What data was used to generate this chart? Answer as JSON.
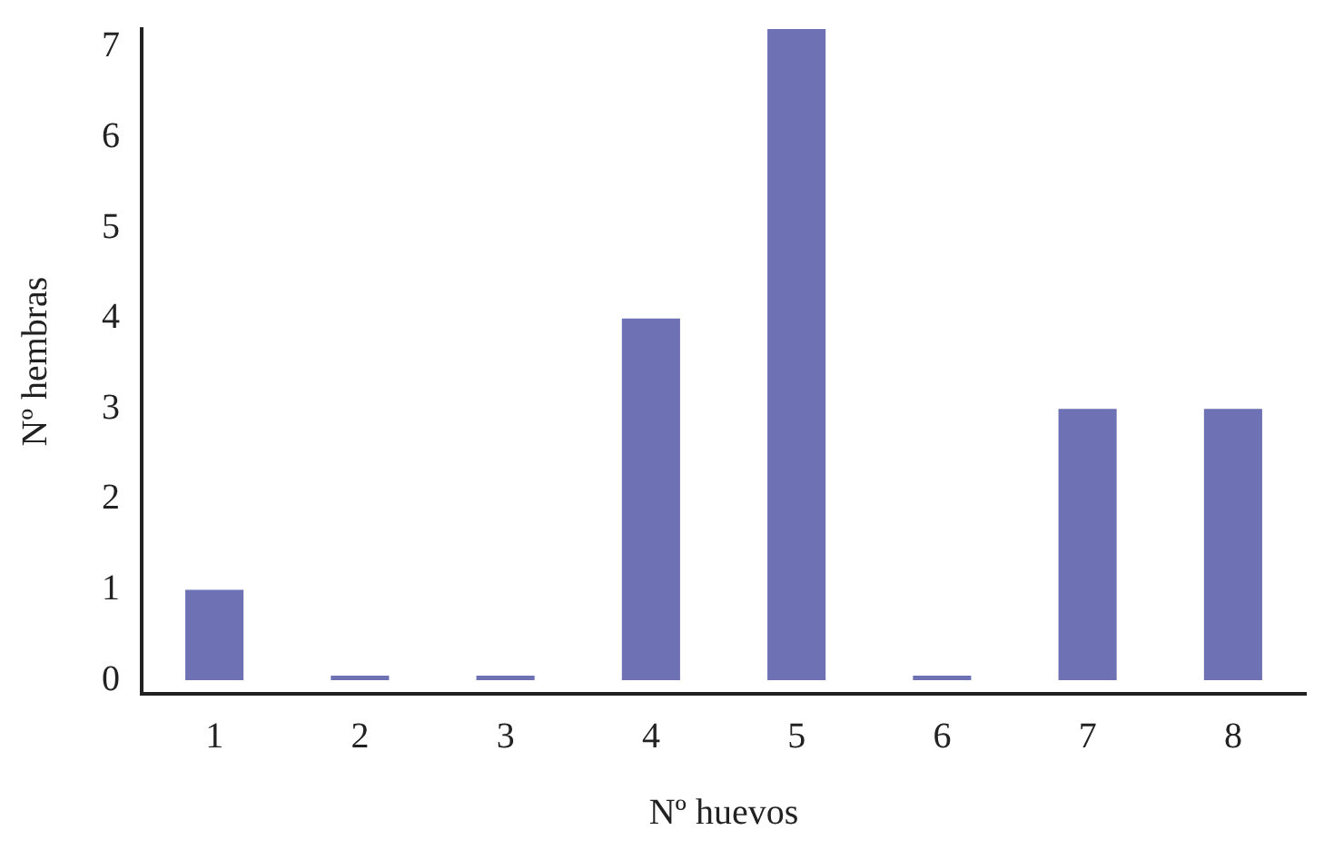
{
  "chart_data": {
    "type": "bar",
    "xlabel": "Nº huevos",
    "ylabel": "Nº hembras",
    "categories": [
      "1",
      "2",
      "3",
      "4",
      "5",
      "6",
      "7",
      "8"
    ],
    "values": [
      1,
      0.05,
      0.05,
      4,
      7.2,
      0.05,
      3,
      3
    ],
    "color": "#6e71b4",
    "ylim": [
      -0.15,
      7.2
    ],
    "yticks": [
      0,
      1,
      2,
      3,
      4,
      5,
      6,
      7
    ],
    "grid": false,
    "legend": false
  }
}
